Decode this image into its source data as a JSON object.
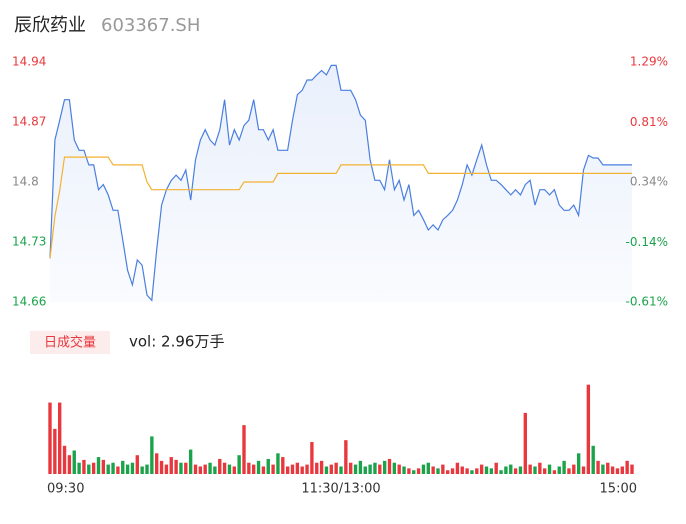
{
  "chart_data": [
    {
      "type": "line",
      "title": "辰欣药业",
      "subtitle": "603367.SH",
      "x": [
        0,
        2,
        4,
        6,
        8,
        10,
        12,
        14,
        16,
        18,
        20,
        22,
        24,
        26,
        28,
        30,
        32,
        34,
        36,
        38,
        40,
        42,
        44,
        46,
        48,
        50,
        52,
        54,
        56,
        58,
        60,
        62,
        64,
        66,
        68,
        70,
        72,
        74,
        76,
        78,
        80,
        82,
        84,
        86,
        88,
        90,
        92,
        94,
        96,
        98,
        100,
        102,
        104,
        106,
        108,
        110,
        112,
        114,
        116,
        118,
        120,
        122,
        124,
        126,
        128,
        130,
        132,
        134,
        136,
        138,
        140,
        142,
        144,
        146,
        148,
        150,
        152,
        154,
        156,
        158,
        160,
        162,
        164,
        166,
        168,
        170,
        172,
        174,
        176,
        178,
        180,
        182,
        184,
        186,
        188,
        190,
        192,
        194,
        196,
        198,
        200,
        202,
        204,
        206,
        208,
        210,
        212,
        214,
        216,
        218,
        220,
        222,
        224,
        226,
        228,
        230,
        232,
        234,
        236,
        238,
        240
      ],
      "xlim": [
        0,
        240
      ],
      "series": [
        {
          "name": "price",
          "color": "#4a7fe0",
          "values": [
            14.711,
            14.849,
            14.872,
            14.896,
            14.896,
            14.849,
            14.837,
            14.837,
            14.82,
            14.82,
            14.791,
            14.797,
            14.785,
            14.767,
            14.767,
            14.732,
            14.697,
            14.68,
            14.709,
            14.703,
            14.668,
            14.662,
            14.721,
            14.773,
            14.791,
            14.802,
            14.808,
            14.802,
            14.814,
            14.779,
            14.826,
            14.849,
            14.861,
            14.849,
            14.843,
            14.861,
            14.896,
            14.843,
            14.861,
            14.849,
            14.866,
            14.872,
            14.896,
            14.861,
            14.861,
            14.849,
            14.861,
            14.837,
            14.837,
            14.837,
            14.872,
            14.902,
            14.907,
            14.919,
            14.919,
            14.925,
            14.93,
            14.925,
            14.936,
            14.936,
            14.907,
            14.907,
            14.907,
            14.896,
            14.878,
            14.872,
            14.826,
            14.802,
            14.802,
            14.791,
            14.826,
            14.791,
            14.802,
            14.779,
            14.797,
            14.761,
            14.767,
            14.756,
            14.744,
            14.75,
            14.744,
            14.756,
            14.761,
            14.767,
            14.779,
            14.797,
            14.82,
            14.808,
            14.826,
            14.843,
            14.82,
            14.802,
            14.802,
            14.797,
            14.791,
            14.785,
            14.791,
            14.785,
            14.797,
            14.802,
            14.773,
            14.791,
            14.791,
            14.785,
            14.791,
            14.773,
            14.767,
            14.767,
            14.773,
            14.761,
            14.814,
            14.831,
            14.828,
            14.828,
            14.82,
            14.82,
            14.82,
            14.82,
            14.82,
            14.82,
            14.82
          ]
        },
        {
          "name": "average",
          "color": "#f2b233",
          "values": [
            14.711,
            14.76,
            14.79,
            14.829,
            14.829,
            14.829,
            14.829,
            14.829,
            14.829,
            14.829,
            14.829,
            14.829,
            14.829,
            14.82,
            14.82,
            14.82,
            14.82,
            14.82,
            14.82,
            14.82,
            14.8,
            14.791,
            14.791,
            14.791,
            14.791,
            14.791,
            14.791,
            14.791,
            14.791,
            14.791,
            14.791,
            14.791,
            14.791,
            14.791,
            14.791,
            14.791,
            14.791,
            14.791,
            14.791,
            14.791,
            14.8,
            14.8,
            14.8,
            14.8,
            14.8,
            14.8,
            14.8,
            14.81,
            14.81,
            14.81,
            14.81,
            14.81,
            14.81,
            14.81,
            14.81,
            14.81,
            14.81,
            14.81,
            14.81,
            14.81,
            14.82,
            14.82,
            14.82,
            14.82,
            14.82,
            14.82,
            14.82,
            14.82,
            14.82,
            14.82,
            14.82,
            14.82,
            14.82,
            14.82,
            14.82,
            14.82,
            14.82,
            14.82,
            14.81,
            14.81,
            14.81,
            14.81,
            14.81,
            14.81,
            14.81,
            14.81,
            14.81,
            14.81,
            14.81,
            14.81,
            14.81,
            14.81,
            14.81,
            14.81,
            14.81,
            14.81,
            14.81,
            14.81,
            14.81,
            14.81,
            14.81,
            14.81,
            14.81,
            14.81,
            14.81,
            14.81,
            14.81,
            14.81,
            14.81,
            14.81,
            14.81,
            14.81,
            14.81,
            14.81,
            14.81,
            14.81,
            14.81,
            14.81,
            14.81,
            14.81,
            14.81
          ]
        }
      ],
      "ylim": [
        14.66,
        14.94
      ],
      "yticks": [
        14.94,
        14.87,
        14.8,
        14.73,
        14.66
      ],
      "y2lim": [
        -0.61,
        1.29
      ],
      "y2ticks": [
        {
          "value": 1.29,
          "label": "1.29%"
        },
        {
          "value": 0.81,
          "label": "0.81%"
        },
        {
          "value": 0.34,
          "label": "0.34%"
        },
        {
          "value": -0.14,
          "label": "-0.14%"
        },
        {
          "value": -0.61,
          "label": "-0.61%"
        }
      ],
      "tick_colors": [
        "#e8383d",
        "#e8383d",
        "#888888",
        "#1aa34a",
        "#1aa34a"
      ]
    },
    {
      "type": "bar",
      "title": "日成交量",
      "subtitle": "vol: 2.96万手",
      "x": [
        0,
        2,
        4,
        6,
        8,
        10,
        12,
        14,
        16,
        18,
        20,
        22,
        24,
        26,
        28,
        30,
        32,
        34,
        36,
        38,
        40,
        42,
        44,
        46,
        48,
        50,
        52,
        54,
        56,
        58,
        60,
        62,
        64,
        66,
        68,
        70,
        72,
        74,
        76,
        78,
        80,
        82,
        84,
        86,
        88,
        90,
        92,
        94,
        96,
        98,
        100,
        102,
        104,
        106,
        108,
        110,
        112,
        114,
        116,
        118,
        120,
        122,
        124,
        126,
        128,
        130,
        132,
        134,
        136,
        138,
        140,
        142,
        144,
        146,
        148,
        150,
        152,
        154,
        156,
        158,
        160,
        162,
        164,
        166,
        168,
        170,
        172,
        174,
        176,
        178,
        180,
        182,
        184,
        186,
        188,
        190,
        192,
        194,
        196,
        198,
        200,
        202,
        204,
        206,
        208,
        210,
        212,
        214,
        216,
        218,
        220,
        222,
        224,
        226,
        228,
        230,
        232,
        234,
        236,
        238,
        240
      ],
      "xlim": [
        0,
        240
      ],
      "xticks": [
        {
          "value": 0,
          "label": "09:30"
        },
        {
          "value": 120,
          "label": "11:30/13:00"
        },
        {
          "value": 240,
          "label": "15:00"
        }
      ],
      "values": [
        76,
        48,
        76,
        30,
        20,
        25,
        12,
        15,
        10,
        12,
        18,
        15,
        10,
        12,
        8,
        14,
        10,
        12,
        20,
        8,
        10,
        40,
        22,
        14,
        10,
        18,
        15,
        12,
        12,
        26,
        10,
        8,
        10,
        12,
        8,
        16,
        12,
        10,
        8,
        20,
        52,
        12,
        10,
        14,
        8,
        16,
        10,
        22,
        18,
        8,
        10,
        12,
        8,
        10,
        34,
        12,
        14,
        8,
        10,
        12,
        8,
        36,
        12,
        10,
        14,
        8,
        10,
        12,
        10,
        14,
        16,
        12,
        10,
        8,
        6,
        4,
        6,
        10,
        12,
        8,
        6,
        10,
        4,
        6,
        12,
        8,
        6,
        4,
        6,
        10,
        8,
        6,
        12,
        4,
        8,
        10,
        6,
        8,
        65,
        10,
        8,
        12,
        6,
        10,
        4,
        8,
        14,
        6,
        10,
        22,
        8,
        95,
        30,
        14,
        10,
        12,
        8,
        6,
        8,
        14,
        10
      ],
      "ylim": [
        0,
        100
      ],
      "up_color": "#e8383d",
      "down_color": "#1aa34a"
    }
  ]
}
